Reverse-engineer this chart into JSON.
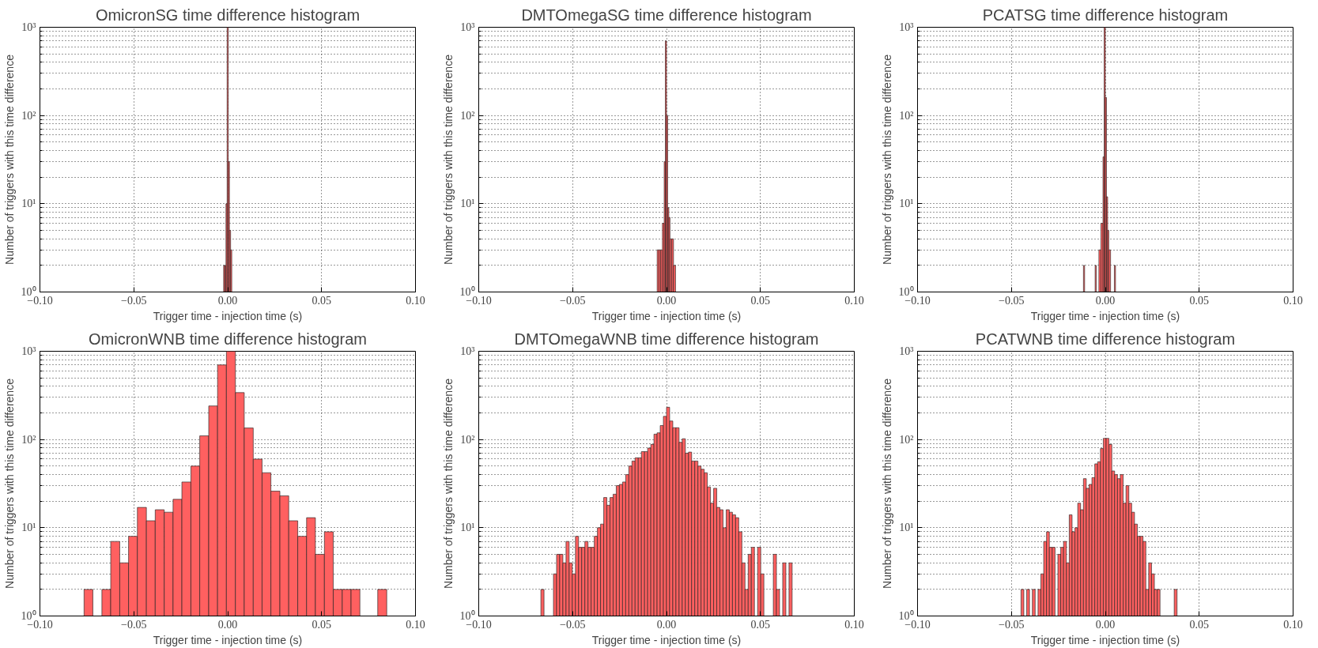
{
  "chart_data": [
    {
      "type": "histogram",
      "title": "OmicronSG time difference histogram",
      "xlabel": "Trigger time - injection time (s)",
      "ylabel": "Number of triggers with this time difference",
      "color": "#ff6060",
      "log": "y",
      "grid": true,
      "xlim": [
        -0.1,
        0.1
      ],
      "ylim": [
        1,
        1000
      ],
      "xticks": [
        {
          "value": -0.1,
          "label": "−0.10"
        },
        {
          "value": -0.05,
          "label": "−0.05"
        },
        {
          "value": 0,
          "label": "0.00"
        },
        {
          "value": 0.05,
          "label": "0.05"
        },
        {
          "value": 0.1,
          "label": "0.10"
        }
      ],
      "yticks": [
        {
          "value": 1,
          "label": "10⁰"
        },
        {
          "value": 10,
          "label": "10¹"
        },
        {
          "value": 100,
          "label": "10²"
        },
        {
          "value": 1000,
          "label": "10³"
        }
      ],
      "bins": [
        -0.00217,
        -0.00155,
        -0.00093,
        -0.00031,
        0.00031,
        0.00093,
        0.00155,
        0.00217
      ],
      "values": [
        2,
        2,
        10,
        1000,
        30,
        5,
        3
      ]
    },
    {
      "type": "histogram",
      "title": "DMTOmegaSG time difference histogram",
      "xlabel": "Trigger time - injection time (s)",
      "ylabel": "Number of triggers with this time difference",
      "color": "#ff6060",
      "log": "y",
      "grid": true,
      "xlim": [
        -0.1,
        0.1
      ],
      "ylim": [
        1,
        1000
      ],
      "xticks": [
        {
          "value": -0.1,
          "label": "−0.10"
        },
        {
          "value": -0.05,
          "label": "−0.05"
        },
        {
          "value": 0,
          "label": "0.00"
        },
        {
          "value": 0.05,
          "label": "0.05"
        },
        {
          "value": 0.1,
          "label": "0.10"
        }
      ],
      "yticks": [
        {
          "value": 1,
          "label": "10⁰"
        },
        {
          "value": 10,
          "label": "10¹"
        },
        {
          "value": 100,
          "label": "10²"
        },
        {
          "value": 1000,
          "label": "10³"
        }
      ],
      "bins": [
        -0.00497,
        -0.00404,
        -0.00311,
        -0.00217,
        -0.00124,
        -0.00062,
        0,
        0.00062,
        0.00124,
        0.00186,
        0.0028,
        0.00373,
        0.00481
      ],
      "values": [
        3,
        3,
        3,
        6,
        30,
        700,
        100,
        9,
        7,
        4,
        4,
        2
      ]
    },
    {
      "type": "histogram",
      "title": "PCATSG time difference histogram",
      "xlabel": "Trigger time - injection time (s)",
      "ylabel": "Number of triggers with this time difference",
      "color": "#ff6060",
      "log": "y",
      "grid": true,
      "xlim": [
        -0.1,
        0.1
      ],
      "ylim": [
        1,
        1000
      ],
      "xticks": [
        {
          "value": -0.1,
          "label": "−0.10"
        },
        {
          "value": -0.05,
          "label": "−0.05"
        },
        {
          "value": 0,
          "label": "0.00"
        },
        {
          "value": 0.05,
          "label": "0.05"
        },
        {
          "value": 0.1,
          "label": "0.10"
        }
      ],
      "yticks": [
        {
          "value": 1,
          "label": "10⁰"
        },
        {
          "value": 10,
          "label": "10¹"
        },
        {
          "value": 100,
          "label": "10²"
        },
        {
          "value": 1000,
          "label": "10³"
        }
      ],
      "bins": [
        -0.01165,
        -0.01102,
        -0.00543,
        -0.00481,
        -0.00342,
        -0.00233,
        -0.00124,
        -0.00062,
        0,
        0.00062,
        0.00124,
        0.00186,
        0.0028,
        0.00481,
        0.00543
      ],
      "values": [
        2,
        null,
        2,
        null,
        3,
        6,
        34,
        1000,
        160,
        12,
        5,
        3,
        null,
        2
      ]
    },
    {
      "type": "histogram",
      "title": "OmicronWNB time difference histogram",
      "xlabel": "Trigger time - injection time (s)",
      "ylabel": "Number of triggers with this time difference",
      "color": "#ff6060",
      "log": "y",
      "grid": true,
      "xlim": [
        -0.1,
        0.1
      ],
      "ylim": [
        1,
        1000
      ],
      "xticks": [
        {
          "value": -0.1,
          "label": "−0.10"
        },
        {
          "value": -0.05,
          "label": "−0.05"
        },
        {
          "value": 0,
          "label": "0.00"
        },
        {
          "value": 0.05,
          "label": "0.05"
        },
        {
          "value": 0.1,
          "label": "0.10"
        }
      ],
      "yticks": [
        {
          "value": 1,
          "label": "10⁰"
        },
        {
          "value": 10,
          "label": "10¹"
        },
        {
          "value": 100,
          "label": "10²"
        },
        {
          "value": 1000,
          "label": "10³"
        }
      ],
      "bins": [
        -0.0765,
        -0.0718,
        -0.067,
        -0.0623,
        -0.0575,
        -0.0528,
        -0.0481,
        -0.0433,
        -0.0386,
        -0.0338,
        -0.0291,
        -0.0244,
        -0.0196,
        -0.0149,
        -0.0101,
        -0.0054,
        -0.0007,
        0.0041,
        0.0088,
        0.0136,
        0.0183,
        0.023,
        0.0278,
        0.0325,
        0.0373,
        0.042,
        0.0467,
        0.0515,
        0.0562,
        0.061,
        0.0657,
        0.0704,
        0.0752,
        0.0799,
        0.0847
      ],
      "values": [
        2,
        null,
        2,
        7,
        4,
        8,
        17,
        12,
        16,
        15,
        21,
        33,
        50,
        110,
        240,
        700,
        1000,
        340,
        135,
        60,
        42,
        26,
        23,
        12,
        8,
        13,
        5,
        9,
        2,
        2,
        2,
        null,
        null,
        2
      ]
    },
    {
      "type": "histogram",
      "title": "DMTOmegaWNB time difference histogram",
      "xlabel": "Trigger time - injection time (s)",
      "ylabel": "Number of triggers with this time difference",
      "color": "#ff6060",
      "log": "y",
      "grid": true,
      "xlim": [
        -0.1,
        0.1
      ],
      "ylim": [
        1,
        1000
      ],
      "xticks": [
        {
          "value": -0.1,
          "label": "−0.10"
        },
        {
          "value": -0.05,
          "label": "−0.05"
        },
        {
          "value": 0,
          "label": "0.00"
        },
        {
          "value": 0.05,
          "label": "0.05"
        },
        {
          "value": 0.1,
          "label": "0.10"
        }
      ],
      "yticks": [
        {
          "value": 1,
          "label": "10⁰"
        },
        {
          "value": 10,
          "label": "10¹"
        },
        {
          "value": 100,
          "label": "10²"
        },
        {
          "value": 1000,
          "label": "10³"
        }
      ],
      "bins": [
        -0.0669,
        -0.06523,
        -0.06356,
        -0.06188,
        -0.06021,
        -0.05854,
        -0.05687,
        -0.05519,
        -0.05352,
        -0.05185,
        -0.05018,
        -0.0485,
        -0.04683,
        -0.04516,
        -0.04349,
        -0.04181,
        -0.04014,
        -0.03847,
        -0.0368,
        -0.03512,
        -0.03345,
        -0.03178,
        -0.03011,
        -0.02843,
        -0.02676,
        -0.02509,
        -0.02342,
        -0.02174,
        -0.02007,
        -0.0184,
        -0.01673,
        -0.01505,
        -0.01338,
        -0.01171,
        -0.01004,
        -0.00836,
        -0.00669,
        -0.00502,
        -0.00335,
        -0.00167,
        0,
        0.00167,
        0.00335,
        0.00502,
        0.00669,
        0.00836,
        0.01004,
        0.01171,
        0.01338,
        0.01505,
        0.01673,
        0.0184,
        0.02007,
        0.02174,
        0.02342,
        0.02509,
        0.02676,
        0.02843,
        0.03011,
        0.03178,
        0.03345,
        0.03512,
        0.0368,
        0.03847,
        0.04014,
        0.04181,
        0.04349,
        0.04516,
        0.04683,
        0.0485,
        0.05018,
        0.05185,
        0.05352,
        0.05519,
        0.05687,
        0.05854,
        0.06021,
        0.06188,
        0.06356,
        0.06523,
        0.0669
      ],
      "values": [
        2,
        null,
        null,
        null,
        3,
        5,
        5,
        4,
        7,
        4,
        3,
        8,
        6,
        6,
        7,
        6,
        6,
        8,
        10,
        11,
        22,
        18,
        22,
        24,
        30,
        31,
        33,
        40,
        50,
        57,
        62,
        62,
        73,
        73,
        80,
        88,
        115,
        119,
        144,
        183,
        232,
        162,
        136,
        136,
        93,
        102,
        70,
        72,
        57,
        57,
        50,
        46,
        42,
        29,
        19,
        28,
        17,
        16,
        10,
        16,
        15,
        14,
        13,
        9,
        4,
        2,
        5,
        6,
        null,
        6,
        3,
        null,
        null,
        null,
        5,
        2,
        null,
        4,
        null,
        4
      ]
    },
    {
      "type": "histogram",
      "title": "PCATWNB time difference histogram",
      "xlabel": "Trigger time - injection time (s)",
      "ylabel": "Number of triggers with this time difference",
      "color": "#ff6060",
      "log": "y",
      "grid": true,
      "xlim": [
        -0.1,
        0.1
      ],
      "ylim": [
        1,
        1000
      ],
      "xticks": [
        {
          "value": -0.1,
          "label": "−0.10"
        },
        {
          "value": -0.05,
          "label": "−0.05"
        },
        {
          "value": 0,
          "label": "0.00"
        },
        {
          "value": 0.05,
          "label": "0.05"
        },
        {
          "value": 0.1,
          "label": "0.10"
        }
      ],
      "yticks": [
        {
          "value": 1,
          "label": "10⁰"
        },
        {
          "value": 10,
          "label": "10¹"
        },
        {
          "value": 100,
          "label": "10²"
        },
        {
          "value": 1000,
          "label": "10³"
        }
      ],
      "bins": [
        -0.0449,
        -0.04339,
        -0.04188,
        -0.04037,
        -0.03886,
        -0.03735,
        -0.03583,
        -0.03432,
        -0.03281,
        -0.0313,
        -0.02979,
        -0.02828,
        -0.02677,
        -0.02526,
        -0.02375,
        -0.02224,
        -0.02072,
        -0.01921,
        -0.0177,
        -0.01619,
        -0.01468,
        -0.01317,
        -0.01166,
        -0.01015,
        -0.00864,
        -0.00713,
        -0.00561,
        -0.0041,
        -0.00259,
        -0.00108,
        0.00043,
        0.00194,
        0.00345,
        0.00496,
        0.00647,
        0.00798,
        0.0095,
        0.01101,
        0.01252,
        0.01403,
        0.01554,
        0.01705,
        0.01856,
        0.02007,
        0.02158,
        0.02309,
        0.02461,
        0.02612,
        0.02763,
        0.02914,
        0.03065,
        0.03216,
        0.03367,
        0.03518,
        0.03669,
        0.0382
      ],
      "values": [
        2,
        null,
        2,
        null,
        2,
        null,
        2,
        3,
        7,
        9,
        6,
        6,
        null,
        5,
        6,
        7,
        4,
        14,
        9,
        10,
        19,
        16,
        36,
        28,
        31,
        37,
        53,
        56,
        79,
        103,
        103,
        88,
        44,
        40,
        36,
        40,
        19,
        30,
        19,
        15,
        11,
        8,
        8,
        7,
        2,
        4,
        3,
        2,
        2,
        null,
        null,
        null,
        null,
        null,
        2
      ]
    }
  ]
}
